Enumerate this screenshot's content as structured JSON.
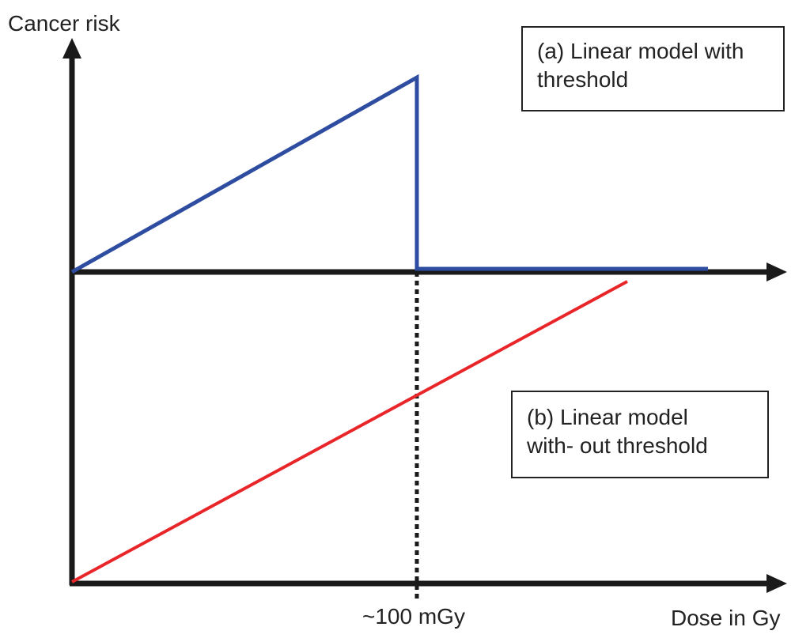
{
  "diagram": {
    "y_axis_label": "Cancer risk",
    "x_axis_label": "Dose in Gy",
    "threshold_label": "~100 mGy",
    "legend_a": {
      "line1": "(a) Linear model with",
      "line2": "threshold",
      "color": "#2e4da0"
    },
    "legend_b": {
      "line1": "(b) Linear model",
      "line2": "with- out threshold",
      "color": "#e8262a"
    },
    "axis_color": "#1a1a1a",
    "threshold_line_style": "dotted"
  }
}
